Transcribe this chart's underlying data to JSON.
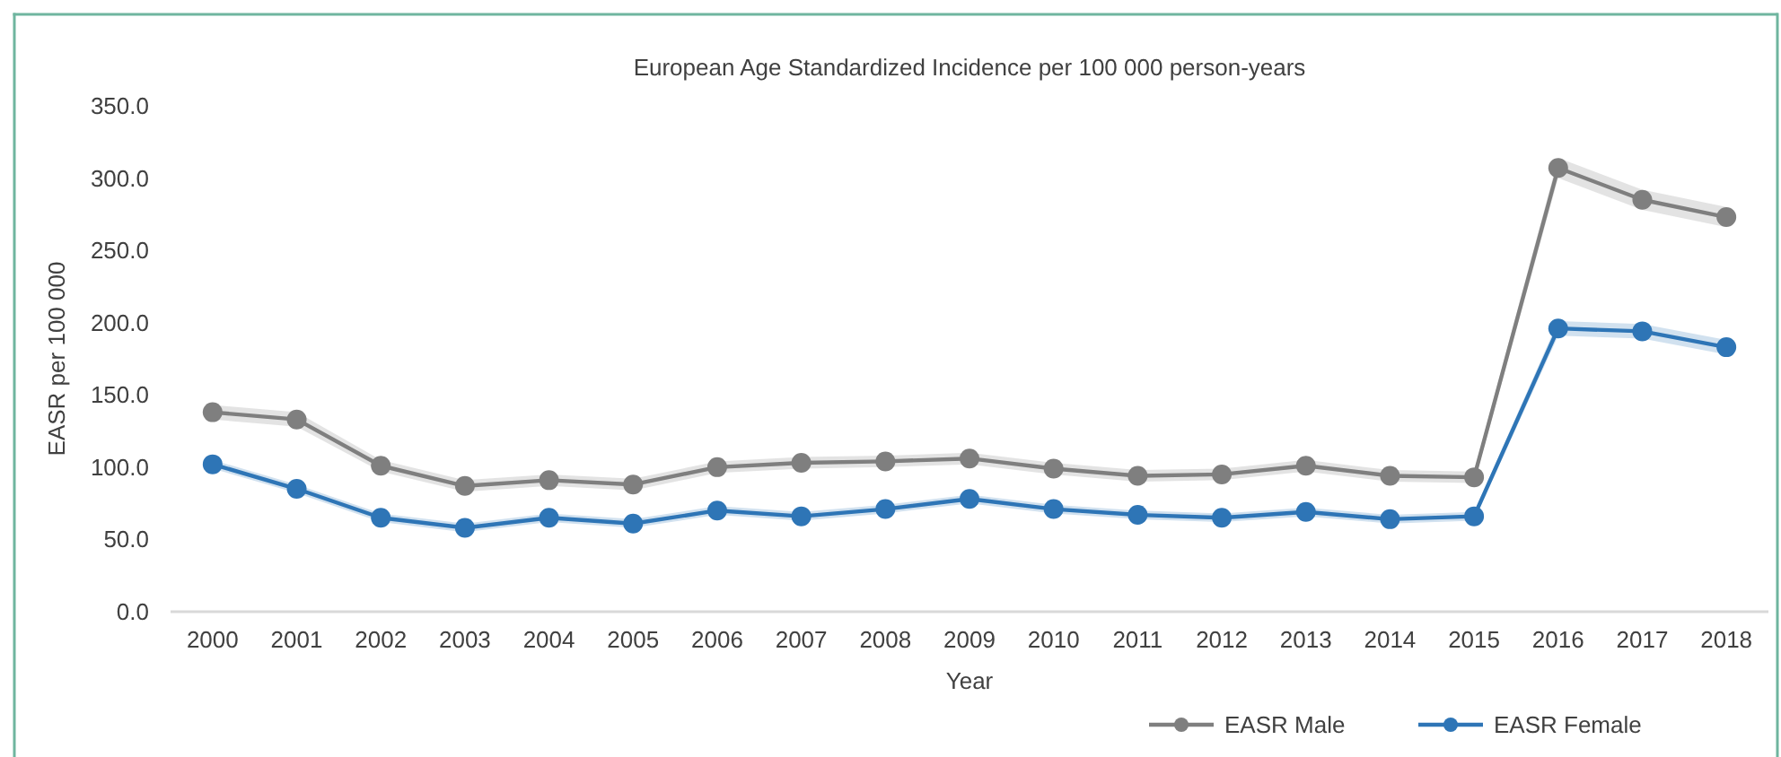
{
  "chart_data": {
    "type": "line",
    "title": "European Age Standardized Incidence per 100 000 person-years",
    "xlabel": "Year",
    "ylabel": "EASR per 100 000",
    "categories": [
      "2000",
      "2001",
      "2002",
      "2003",
      "2004",
      "2005",
      "2006",
      "2007",
      "2008",
      "2009",
      "2010",
      "2011",
      "2012",
      "2013",
      "2014",
      "2015",
      "2016",
      "2017",
      "2018"
    ],
    "ylim": [
      0,
      350
    ],
    "yticks": [
      {
        "value": 0,
        "label": "0.0"
      },
      {
        "value": 50,
        "label": "50.0"
      },
      {
        "value": 100,
        "label": "100.0"
      },
      {
        "value": 150,
        "label": "150.0"
      },
      {
        "value": 200,
        "label": "200.0"
      },
      {
        "value": 250,
        "label": "250.0"
      },
      {
        "value": 300,
        "label": "300.0"
      },
      {
        "value": 350,
        "label": "350.0"
      }
    ],
    "grid": false,
    "legend": "bottom right",
    "marker": "circle",
    "line_style": "solid",
    "series": [
      {
        "name": "EASR Male",
        "color": "#7f7f7f",
        "values": [
          138,
          133,
          101,
          87,
          91,
          88,
          100,
          103,
          104,
          106,
          99,
          94,
          95,
          101,
          94,
          93,
          307,
          285,
          273
        ],
        "lower": [
          133,
          128,
          97,
          83,
          87,
          84,
          96,
          99,
          100,
          102,
          95,
          90,
          91,
          97,
          90,
          89,
          300,
          278,
          266
        ],
        "upper": [
          143,
          138,
          105,
          91,
          95,
          92,
          104,
          107,
          108,
          110,
          103,
          98,
          99,
          105,
          98,
          97,
          314,
          292,
          280
        ]
      },
      {
        "name": "EASR Female",
        "color": "#2e75b6",
        "values": [
          102,
          85,
          65,
          58,
          65,
          61,
          70,
          66,
          71,
          78,
          71,
          67,
          65,
          69,
          64,
          66,
          196,
          194,
          183
        ],
        "lower": [
          99,
          82,
          62,
          55,
          62,
          58,
          67,
          63,
          68,
          75,
          68,
          64,
          62,
          66,
          61,
          63,
          191,
          189,
          178
        ],
        "upper": [
          105,
          88,
          68,
          61,
          68,
          64,
          73,
          69,
          74,
          81,
          74,
          70,
          68,
          72,
          67,
          69,
          201,
          199,
          188
        ]
      }
    ]
  }
}
